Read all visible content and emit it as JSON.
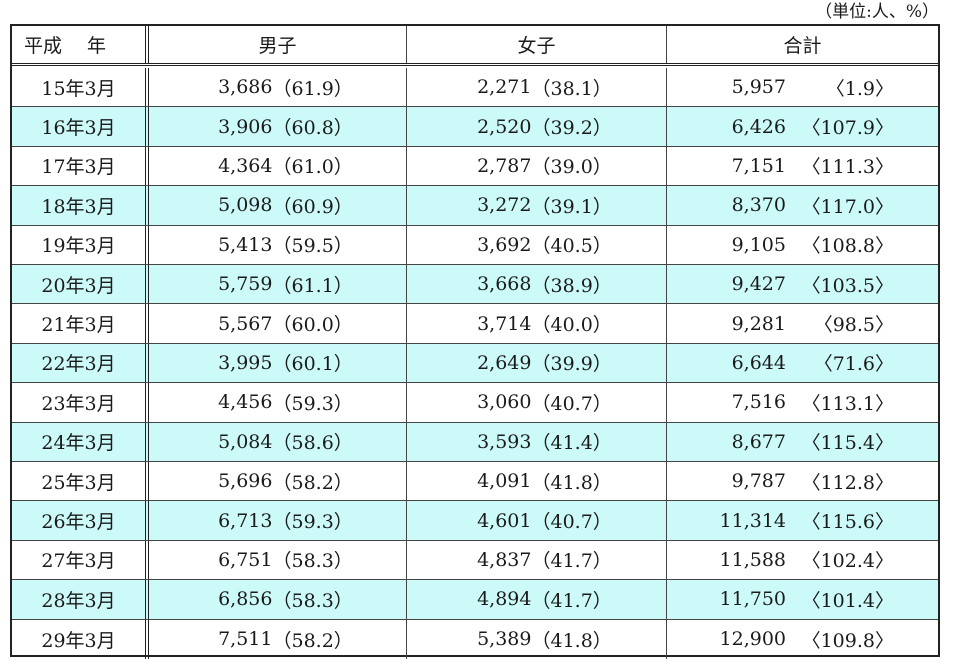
{
  "unit_note": "（単位:人、%）",
  "colors": {
    "shade": "#ccfaf9",
    "border": "#222222"
  },
  "header": {
    "year": "平成　 年",
    "male": "男子",
    "female": "女子",
    "total": "合計"
  },
  "rows": [
    {
      "year": "15年3月",
      "male": "3,686",
      "male_pct": "（61.9）",
      "female": "2,271",
      "female_pct": "（38.1）",
      "total": "5,957",
      "total_idx": "〈1.9〉"
    },
    {
      "year": "16年3月",
      "male": "3,906",
      "male_pct": "（60.8）",
      "female": "2,520",
      "female_pct": "（39.2）",
      "total": "6,426",
      "total_idx": "〈107.9〉"
    },
    {
      "year": "17年3月",
      "male": "4,364",
      "male_pct": "（61.0）",
      "female": "2,787",
      "female_pct": "（39.0）",
      "total": "7,151",
      "total_idx": "〈111.3〉"
    },
    {
      "year": "18年3月",
      "male": "5,098",
      "male_pct": "（60.9）",
      "female": "3,272",
      "female_pct": "（39.1）",
      "total": "8,370",
      "total_idx": "〈117.0〉"
    },
    {
      "year": "19年3月",
      "male": "5,413",
      "male_pct": "（59.5）",
      "female": "3,692",
      "female_pct": "（40.5）",
      "total": "9,105",
      "total_idx": "〈108.8〉"
    },
    {
      "year": "20年3月",
      "male": "5,759",
      "male_pct": "（61.1）",
      "female": "3,668",
      "female_pct": "（38.9）",
      "total": "9,427",
      "total_idx": "〈103.5〉"
    },
    {
      "year": "21年3月",
      "male": "5,567",
      "male_pct": "（60.0）",
      "female": "3,714",
      "female_pct": "（40.0）",
      "total": "9,281",
      "total_idx": "〈98.5〉"
    },
    {
      "year": "22年3月",
      "male": "3,995",
      "male_pct": "（60.1）",
      "female": "2,649",
      "female_pct": "（39.9）",
      "total": "6,644",
      "total_idx": "〈71.6〉"
    },
    {
      "year": "23年3月",
      "male": "4,456",
      "male_pct": "（59.3）",
      "female": "3,060",
      "female_pct": "（40.7）",
      "total": "7,516",
      "total_idx": "〈113.1〉"
    },
    {
      "year": "24年3月",
      "male": "5,084",
      "male_pct": "（58.6）",
      "female": "3,593",
      "female_pct": "（41.4）",
      "total": "8,677",
      "total_idx": "〈115.4〉"
    },
    {
      "year": "25年3月",
      "male": "5,696",
      "male_pct": "（58.2）",
      "female": "4,091",
      "female_pct": "（41.8）",
      "total": "9,787",
      "total_idx": "〈112.8〉"
    },
    {
      "year": "26年3月",
      "male": "6,713",
      "male_pct": "（59.3）",
      "female": "4,601",
      "female_pct": "（40.7）",
      "total": "11,314",
      "total_idx": "〈115.6〉"
    },
    {
      "year": "27年3月",
      "male": "6,751",
      "male_pct": "（58.3）",
      "female": "4,837",
      "female_pct": "（41.7）",
      "total": "11,588",
      "total_idx": "〈102.4〉"
    },
    {
      "year": "28年3月",
      "male": "6,856",
      "male_pct": "（58.3）",
      "female": "4,894",
      "female_pct": "（41.7）",
      "total": "11,750",
      "total_idx": "〈101.4〉"
    },
    {
      "year": "29年3月",
      "male": "7,511",
      "male_pct": "（58.2）",
      "female": "5,389",
      "female_pct": "（41.8）",
      "total": "12,900",
      "total_idx": "〈109.8〉"
    }
  ]
}
